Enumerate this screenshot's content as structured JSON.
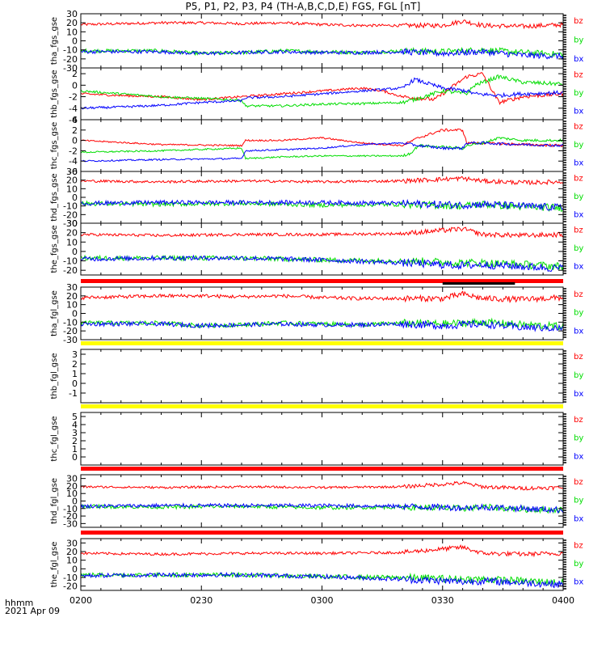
{
  "title": "P5, P1, P2, P3, P4 (TH-A,B,C,D,E) FGS, FGL [nT]",
  "footer": {
    "time_label": "hhmm",
    "date_label": "2021 Apr 09"
  },
  "colors": {
    "bx": "#0000ff",
    "by": "#00dd00",
    "bz": "#ff0000",
    "flag_red": "#ff0000",
    "flag_yellow": "#ffff00",
    "flag_black": "#000000"
  },
  "chart_data": {
    "type": "line",
    "x_axis": {
      "ticks": [
        "0200",
        "0230",
        "0300",
        "0330",
        "0400"
      ]
    },
    "legend_labels": [
      "bz",
      "by",
      "bx"
    ],
    "panels": [
      {
        "id": "tha_fgs_gse",
        "ylabel": "tha_fgs_gse",
        "ylim": [
          -30,
          30
        ],
        "yticks": [
          "30",
          "20",
          "10",
          "0",
          "-10",
          "-20",
          "-30"
        ],
        "series": [
          {
            "name": "bz",
            "x": [
              0,
              10,
              20,
              30,
              40,
              50,
              60,
              70,
              80,
              90,
              95,
              100,
              110,
              120
            ],
            "values": [
              18,
              19,
              20,
              20,
              19,
              20,
              18,
              17,
              17,
              17,
              22,
              17,
              16,
              18
            ],
            "noise": 1.5
          },
          {
            "name": "by",
            "x": [
              0,
              20,
              30,
              40,
              50,
              60,
              70,
              80,
              90,
              100,
              110,
              120
            ],
            "values": [
              -11,
              -11,
              -14,
              -13,
              -11,
              -12,
              -13,
              -11,
              -12,
              -10,
              -13,
              -15
            ],
            "noise": 2
          },
          {
            "name": "bx",
            "x": [
              0,
              20,
              30,
              40,
              50,
              60,
              70,
              80,
              90,
              100,
              110,
              120
            ],
            "values": [
              -12,
              -12,
              -14,
              -13,
              -12,
              -13,
              -13,
              -12,
              -14,
              -12,
              -16,
              -17
            ],
            "noise": 2
          }
        ]
      },
      {
        "id": "thb_fgs_gse",
        "ylabel": "thb_fgs_gse",
        "ylim": [
          -6,
          3
        ],
        "yticks": [
          "2",
          "0",
          "-2",
          "-4",
          "-6"
        ],
        "series": [
          {
            "name": "bz",
            "x": [
              0,
              10,
              20,
              30,
              40,
              50,
              60,
              70,
              75,
              80,
              88,
              96,
              100,
              104,
              110,
              120
            ],
            "values": [
              -1.5,
              -1.8,
              -2,
              -2.5,
              -2,
              -1.5,
              -1,
              -0.5,
              -1,
              -2,
              -2.5,
              1.5,
              2,
              -3,
              -2,
              -1.5
            ],
            "noise": 0.2
          },
          {
            "name": "by",
            "x": [
              0,
              10,
              20,
              30,
              40,
              41,
              50,
              60,
              70,
              80,
              83,
              90,
              96,
              98,
              104,
              110,
              120
            ],
            "values": [
              -1,
              -1.5,
              -2,
              -2.3,
              -2.6,
              -3.6,
              -3.6,
              -3.3,
              -3.2,
              -3,
              -2.5,
              -1,
              -1.5,
              0,
              1.5,
              0.5,
              0.2
            ],
            "noise": 0.2
          },
          {
            "name": "bx",
            "x": [
              0,
              10,
              20,
              30,
              40,
              41,
              50,
              60,
              70,
              80,
              83,
              90,
              96,
              98,
              104,
              110,
              120
            ],
            "values": [
              -4,
              -3.8,
              -3.5,
              -3,
              -2.7,
              -2.2,
              -2,
              -1.5,
              -1,
              -0.5,
              1,
              -0.5,
              -1,
              -1.5,
              -1.8,
              -1.5,
              -1.3
            ],
            "noise": 0.2
          }
        ]
      },
      {
        "id": "thc_fgs_gse",
        "ylabel": "thc_fgs_gse",
        "ylim": [
          -6,
          4
        ],
        "yticks": [
          "4",
          "2",
          "0",
          "-2",
          "-4",
          "-6"
        ],
        "series": [
          {
            "name": "bz",
            "x": [
              0,
              20,
              40,
              41,
              50,
              60,
              70,
              80,
              84,
              90,
              95,
              96,
              100,
              110,
              120
            ],
            "values": [
              0,
              -0.8,
              -1,
              0,
              0,
              0.5,
              -0.5,
              -1,
              0.5,
              2,
              2,
              -0.5,
              -0.5,
              -0.8,
              -1
            ],
            "noise": 0.15
          },
          {
            "name": "by",
            "x": [
              0,
              20,
              40,
              41,
              50,
              60,
              70,
              80,
              82,
              84,
              95,
              96,
              100,
              104,
              110,
              120
            ],
            "values": [
              -2.3,
              -2,
              -1.5,
              -3.5,
              -3.2,
              -3,
              -3,
              -3,
              -2.5,
              -1,
              -1.5,
              -1,
              -0.5,
              0.5,
              0,
              0
            ],
            "noise": 0.15
          },
          {
            "name": "bx",
            "x": [
              0,
              20,
              40,
              41,
              50,
              60,
              70,
              80,
              84,
              90,
              95,
              96,
              100,
              110,
              120
            ],
            "values": [
              -4,
              -3.7,
              -3.5,
              -2,
              -1.8,
              -1.5,
              -0.8,
              -0.5,
              -1,
              -1.5,
              -1.5,
              -0.5,
              -0.5,
              -0.8,
              -1
            ],
            "noise": 0.15
          }
        ]
      },
      {
        "id": "thd_fgs_gse",
        "ylabel": "thd_fgs_gse",
        "ylim": [
          -30,
          30
        ],
        "yticks": [
          "30",
          "20",
          "10",
          "0",
          "-10",
          "-20",
          "-30"
        ],
        "series": [
          {
            "name": "bz",
            "x": [
              0,
              20,
              40,
              60,
              80,
              95,
              100,
              110,
              120
            ],
            "values": [
              19,
              18,
              19,
              18,
              19,
              22,
              19,
              17,
              18
            ],
            "noise": 1.5
          },
          {
            "name": "by",
            "x": [
              0,
              20,
              40,
              60,
              80,
              95,
              100,
              110,
              120
            ],
            "values": [
              -7,
              -8,
              -7,
              -9,
              -8,
              -10,
              -8,
              -11,
              -12
            ],
            "noise": 2.5
          },
          {
            "name": "bx",
            "x": [
              0,
              20,
              40,
              60,
              80,
              95,
              100,
              110,
              120
            ],
            "values": [
              -7,
              -6,
              -6,
              -6,
              -7,
              -9,
              -8,
              -10,
              -12
            ],
            "noise": 2.5
          }
        ]
      },
      {
        "id": "the_fgs_gse",
        "ylabel": "the_fgs_gse",
        "ylim": [
          -25,
          30
        ],
        "yticks": [
          "30",
          "20",
          "10",
          "0",
          "-10",
          "-20"
        ],
        "series": [
          {
            "name": "bz",
            "x": [
              0,
              20,
              40,
              60,
              80,
              95,
              100,
              110,
              120
            ],
            "values": [
              18,
              17,
              18,
              18,
              19,
              24,
              18,
              17,
              18
            ],
            "noise": 1.5
          },
          {
            "name": "by",
            "x": [
              0,
              20,
              40,
              60,
              80,
              95,
              100,
              110,
              120
            ],
            "values": [
              -7,
              -7,
              -7,
              -9,
              -10,
              -12,
              -12,
              -14,
              -16
            ],
            "noise": 2.5
          },
          {
            "name": "bx",
            "x": [
              0,
              20,
              40,
              60,
              80,
              95,
              100,
              110,
              120
            ],
            "values": [
              -8,
              -7,
              -7,
              -9,
              -12,
              -15,
              -14,
              -16,
              -18
            ],
            "noise": 2.5
          }
        ]
      },
      {
        "id": "tha_fgl_gse",
        "ylabel": "tha_fgl_gse",
        "ylim": [
          -30,
          30
        ],
        "yticks": [
          "30",
          "20",
          "10",
          "0",
          "-10",
          "-20",
          "-30"
        ],
        "flag": {
          "color": "flag_red",
          "gap": [
            90,
            108
          ]
        },
        "series": [
          {
            "name": "bz",
            "x": [
              0,
              10,
              20,
              30,
              40,
              50,
              60,
              70,
              80,
              90,
              95,
              100,
              110,
              120
            ],
            "values": [
              18,
              19,
              20,
              20,
              19,
              20,
              18,
              17,
              17,
              17,
              22,
              17,
              16,
              18
            ],
            "noise": 2
          },
          {
            "name": "by",
            "x": [
              0,
              20,
              30,
              40,
              50,
              60,
              70,
              80,
              90,
              100,
              110,
              120
            ],
            "values": [
              -11,
              -11,
              -14,
              -13,
              -11,
              -12,
              -13,
              -11,
              -12,
              -10,
              -13,
              -15
            ],
            "noise": 2.5
          },
          {
            "name": "bx",
            "x": [
              0,
              20,
              30,
              40,
              50,
              60,
              70,
              80,
              90,
              100,
              110,
              120
            ],
            "values": [
              -12,
              -12,
              -14,
              -13,
              -12,
              -13,
              -13,
              -12,
              -14,
              -12,
              -16,
              -17
            ],
            "noise": 2.5
          }
        ]
      },
      {
        "id": "thb_fgl_gse",
        "ylabel": "thb_fgl_gse",
        "ylim": [
          -2,
          3.5
        ],
        "yticks": [
          "3",
          "2",
          "1",
          "0",
          "-1"
        ],
        "flag": {
          "color": "flag_yellow"
        },
        "series": []
      },
      {
        "id": "thc_fgl_gse",
        "ylabel": "thc_fgl_gse",
        "ylim": [
          -1,
          5.5
        ],
        "yticks": [
          "5",
          "4",
          "3",
          "2",
          "1",
          "0"
        ],
        "flag": {
          "color": "flag_yellow"
        },
        "series": []
      },
      {
        "id": "thd_fgl_gse",
        "ylabel": "thd_fgl_gse",
        "ylim": [
          -35,
          35
        ],
        "yticks": [
          "30",
          "20",
          "10",
          "0",
          "-10",
          "-20",
          "-30"
        ],
        "flag": {
          "color": "flag_red"
        },
        "series": [
          {
            "name": "bz",
            "x": [
              0,
              20,
              40,
              60,
              80,
              95,
              100,
              110,
              120
            ],
            "values": [
              19,
              18,
              19,
              18,
              19,
              24,
              19,
              17,
              18
            ],
            "noise": 1.5
          },
          {
            "name": "by",
            "x": [
              0,
              20,
              40,
              60,
              80,
              95,
              100,
              110,
              120
            ],
            "values": [
              -7,
              -8,
              -7,
              -9,
              -8,
              -10,
              -8,
              -11,
              -12
            ],
            "noise": 2.5
          },
          {
            "name": "bx",
            "x": [
              0,
              20,
              40,
              60,
              80,
              95,
              100,
              110,
              120
            ],
            "values": [
              -7,
              -6,
              -6,
              -6,
              -7,
              -9,
              -8,
              -10,
              -12
            ],
            "noise": 2.5
          }
        ]
      },
      {
        "id": "the_fgl_gse",
        "ylabel": "the_fgl_gse",
        "ylim": [
          -25,
          35
        ],
        "yticks": [
          "30",
          "20",
          "10",
          "0",
          "-10",
          "-20"
        ],
        "flag": {
          "color": "flag_red"
        },
        "series": [
          {
            "name": "bz",
            "x": [
              0,
              20,
              40,
              60,
              80,
              95,
              100,
              110,
              120
            ],
            "values": [
              18,
              17,
              18,
              18,
              19,
              25,
              18,
              17,
              18
            ],
            "noise": 1.5
          },
          {
            "name": "by",
            "x": [
              0,
              20,
              40,
              60,
              80,
              95,
              100,
              110,
              120
            ],
            "values": [
              -7,
              -7,
              -7,
              -9,
              -10,
              -12,
              -12,
              -14,
              -16
            ],
            "noise": 2.5
          },
          {
            "name": "bx",
            "x": [
              0,
              20,
              40,
              60,
              80,
              95,
              100,
              110,
              120
            ],
            "values": [
              -8,
              -7,
              -7,
              -9,
              -12,
              -15,
              -14,
              -16,
              -18
            ],
            "noise": 2.5
          }
        ]
      }
    ]
  }
}
